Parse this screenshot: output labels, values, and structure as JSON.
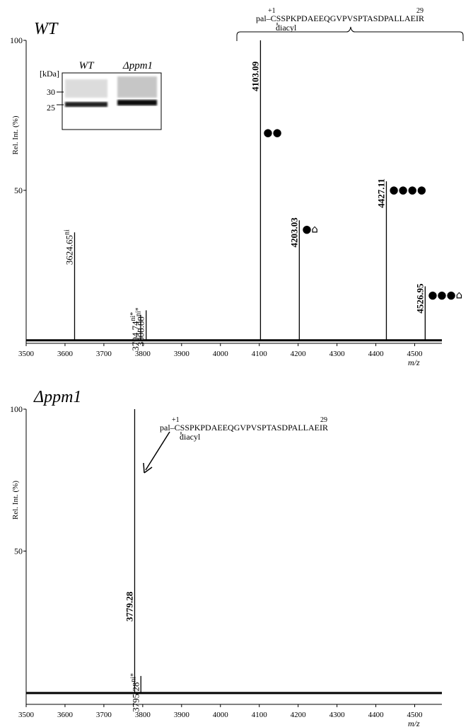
{
  "chart_data": [
    {
      "type": "stem",
      "title": "WT",
      "ylabel": "Rel. Int. (%)",
      "xlabel": "m/z",
      "color": "#000000",
      "xlim": [
        3500,
        4570
      ],
      "ylim": [
        -1,
        100
      ],
      "xticks": [
        3500,
        3600,
        3700,
        3800,
        3900,
        4000,
        4100,
        4200,
        4300,
        4400,
        4500
      ],
      "yticks": [
        50,
        100
      ],
      "x": [
        3624.65,
        3794.74,
        3808.88,
        4103.09,
        4203.03,
        4427.11,
        4526.95
      ],
      "values": [
        36,
        8.5,
        10,
        100,
        40,
        53,
        18
      ],
      "peak_labels": [
        "3624.65",
        "3794.74",
        "3808.88",
        "4103.09",
        "4203.03",
        "4427.11",
        "4526.95"
      ],
      "peak_notes": [
        "ni",
        "ni*",
        "ni*",
        null,
        null,
        null,
        null
      ],
      "bold": [
        false,
        false,
        false,
        true,
        true,
        true,
        true
      ],
      "glycan_marks": [
        null,
        null,
        null,
        "●●",
        "●⌂",
        "●●●●",
        "●●●⌂"
      ],
      "peptide": {
        "prefix": "pal–",
        "sequence": "CSSPKPDAEEQGVPVSPTASDPALLAEIR",
        "start": "+1",
        "end": "29",
        "modification": "diacyl"
      },
      "inset": {
        "unit": "[kDa]",
        "lanes": [
          "WT",
          "Δppm1"
        ],
        "markers": [
          "30",
          "25"
        ]
      }
    },
    {
      "type": "stem",
      "title": "Δppm1",
      "ylabel": "Rel. Int. (%)",
      "xlabel": "m/z",
      "color": "#000000",
      "xlim": [
        3500,
        4570
      ],
      "ylim": [
        -4,
        100
      ],
      "xticks": [
        3500,
        3600,
        3700,
        3800,
        3900,
        4000,
        4100,
        4200,
        4300,
        4400,
        4500
      ],
      "yticks": [
        50,
        100
      ],
      "x": [
        3779.28,
        3795.28
      ],
      "values": [
        100,
        6
      ],
      "peak_labels": [
        "3779.28",
        "3795.28"
      ],
      "peak_notes": [
        null,
        "ni*"
      ],
      "bold": [
        true,
        false
      ],
      "peptide": {
        "prefix": "pal–",
        "sequence": "CSSPKPDAEEQGVPVSPTASDPALLAEIR",
        "start": "+1",
        "end": "29",
        "modification": "diacyl"
      }
    }
  ]
}
